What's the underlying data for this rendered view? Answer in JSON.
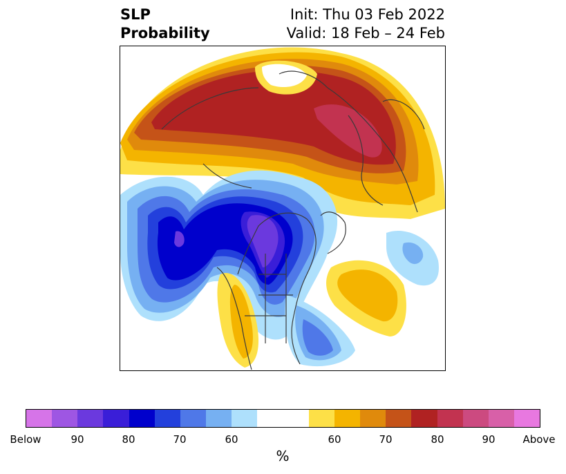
{
  "title": {
    "left_line1": "SLP",
    "left_line2": "Probability",
    "right_line1": "Init: Thu 03 Feb 2022",
    "right_line2": "Valid: 18 Feb – 24 Feb"
  },
  "colorbar": {
    "unit": "%",
    "colors": [
      "#d674e8",
      "#9e56e3",
      "#6b39de",
      "#3a1ed8",
      "#0000cc",
      "#2340dc",
      "#4f78e8",
      "#76b0f2",
      "#aee0fc",
      "#ffffff",
      "#ffffff",
      "#fde047",
      "#f4b400",
      "#e08a0c",
      "#c55318",
      "#b02222",
      "#c23350",
      "#cc4a80",
      "#d860a8",
      "#e878e0"
    ],
    "tick_labels": [
      "Below",
      "90",
      "80",
      "70",
      "60",
      "60",
      "70",
      "80",
      "90",
      "Above"
    ]
  },
  "map": {
    "projection": "north-polar-stereographic",
    "above_colors": {
      "60": "#fde047",
      "65": "#f4b400",
      "70": "#e08a0c",
      "75": "#c55318",
      "80": "#b02222",
      "85": "#c23350"
    },
    "below_colors": {
      "60": "#aee0fc",
      "65": "#76b0f2",
      "70": "#4f78e8",
      "75": "#2340dc",
      "80": "#0000cc",
      "85": "#3a1ed8",
      "90": "#6b39de"
    }
  }
}
